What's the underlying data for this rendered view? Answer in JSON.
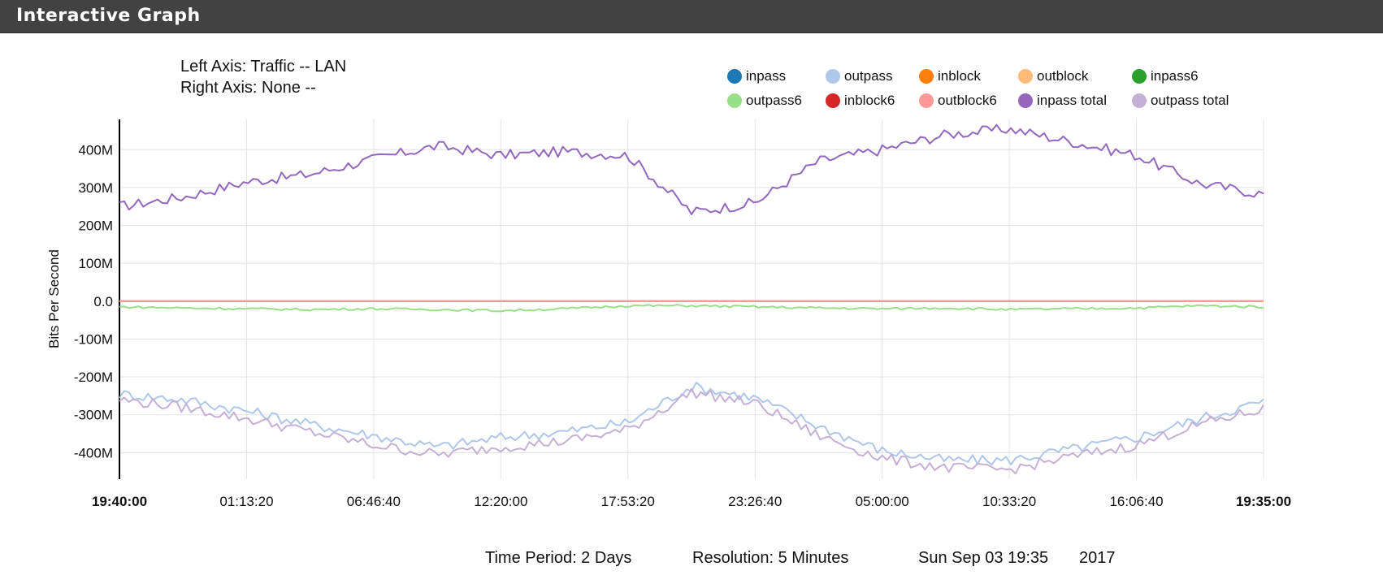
{
  "header": {
    "title": "Interactive Graph"
  },
  "axis_info": {
    "left": "Left Axis: Traffic -- LAN",
    "right": "Right Axis: None --"
  },
  "legend": [
    {
      "label": "inpass",
      "color": "#1f77b4"
    },
    {
      "label": "outpass",
      "color": "#aec7e8"
    },
    {
      "label": "inblock",
      "color": "#ff7f0e"
    },
    {
      "label": "outblock",
      "color": "#ffbb78"
    },
    {
      "label": "inpass6",
      "color": "#2ca02c"
    },
    {
      "label": "outpass6",
      "color": "#98df8a"
    },
    {
      "label": "inblock6",
      "color": "#d62728"
    },
    {
      "label": "outblock6",
      "color": "#ff9896"
    },
    {
      "label": "inpass total",
      "color": "#9467bd"
    },
    {
      "label": "outpass total",
      "color": "#c5b0d5"
    }
  ],
  "footer": {
    "period": "Time Period: 2 Days",
    "resolution": "Resolution: 5 Minutes",
    "date": "Sun Sep 03 19:35",
    "year": "2017"
  },
  "chart_data": {
    "type": "line",
    "ylabel": "Bits Per Second",
    "ylim": [
      -470000000,
      480000000
    ],
    "yticks": [
      {
        "value": 400000000,
        "label": "400M"
      },
      {
        "value": 300000000,
        "label": "300M"
      },
      {
        "value": 200000000,
        "label": "200M"
      },
      {
        "value": 100000000,
        "label": "100M"
      },
      {
        "value": 0,
        "label": "0.0"
      },
      {
        "value": -100000000,
        "label": "-100M"
      },
      {
        "value": -200000000,
        "label": "-200M"
      },
      {
        "value": -300000000,
        "label": "-300M"
      },
      {
        "value": -400000000,
        "label": "-400M"
      }
    ],
    "xlim": [
      "19:40:00",
      "19:35:00"
    ],
    "xticks": [
      "19:40:00",
      "01:13:20",
      "06:46:40",
      "12:20:00",
      "17:53:20",
      "23:26:40",
      "05:00:00",
      "10:33:20",
      "16:06:40",
      "19:35:00"
    ],
    "x": [
      "19:40",
      "22:00",
      "01:13",
      "04:00",
      "06:47",
      "09:30",
      "12:20",
      "15:00",
      "17:53",
      "20:30",
      "23:27",
      "02:00",
      "05:00",
      "08:00",
      "10:33",
      "13:30",
      "16:07",
      "18:00",
      "19:35"
    ],
    "series": [
      {
        "name": "inpass total",
        "color": "#9467bd",
        "values": [
          250,
          275,
          315,
          335,
          375,
          410,
          385,
          395,
          385,
          235,
          260,
          370,
          400,
          440,
          455,
          420,
          385,
          310,
          283
        ]
      },
      {
        "name": "outpass",
        "color": "#aec7e8",
        "values": [
          -245,
          -260,
          -290,
          -325,
          -355,
          -385,
          -360,
          -345,
          -320,
          -225,
          -255,
          -330,
          -395,
          -420,
          -420,
          -390,
          -360,
          -310,
          -265
        ]
      },
      {
        "name": "outpass total",
        "color": "#c5b0d5",
        "values": [
          -260,
          -280,
          -310,
          -345,
          -380,
          -405,
          -385,
          -370,
          -340,
          -240,
          -270,
          -355,
          -415,
          -440,
          -445,
          -410,
          -380,
          -325,
          -285
        ]
      },
      {
        "name": "outpass6",
        "color": "#98df8a",
        "values": [
          -15,
          -18,
          -20,
          -22,
          -20,
          -22,
          -25,
          -20,
          -12,
          -12,
          -15,
          -18,
          -20,
          -18,
          -22,
          -20,
          -18,
          -12,
          -15
        ]
      },
      {
        "name": "outblock6",
        "color": "#ff9896",
        "values": [
          0,
          0,
          0,
          0,
          0,
          0,
          0,
          0,
          0,
          0,
          0,
          0,
          0,
          0,
          0,
          0,
          0,
          0,
          0
        ]
      }
    ]
  }
}
